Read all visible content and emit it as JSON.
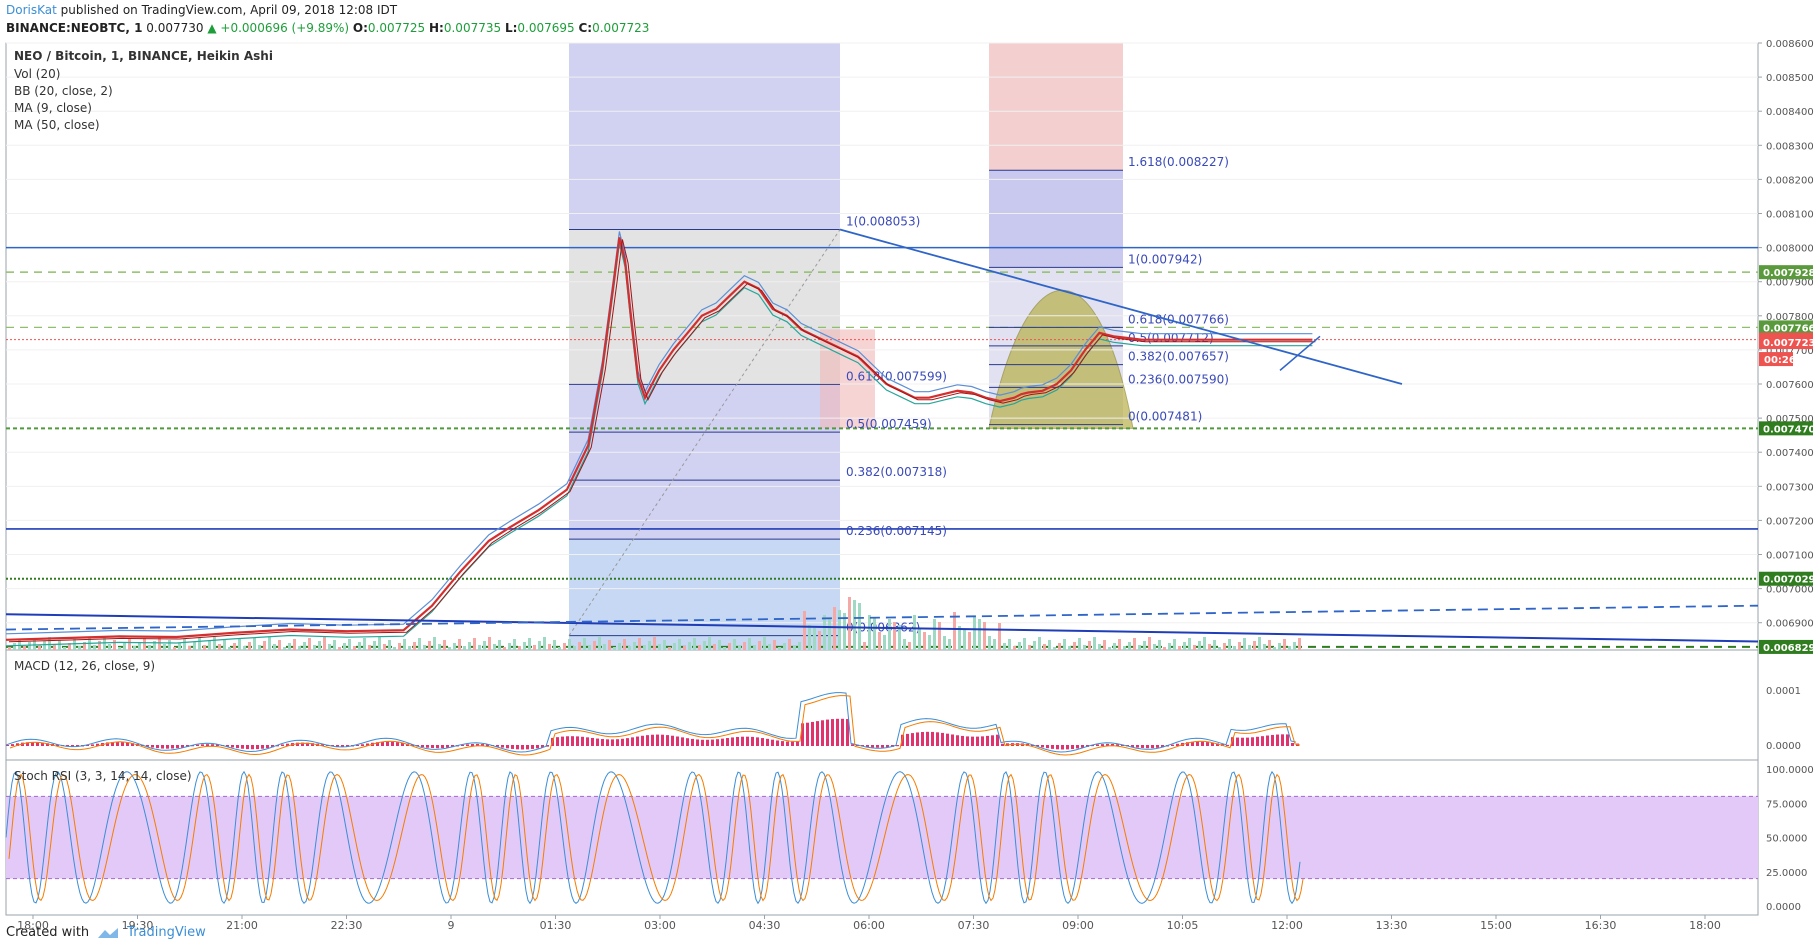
{
  "header": {
    "author": "DorisKat",
    "published": "published on TradingView.com, April 09, 2018 12:08 IDT",
    "symbol": "BINANCE:NEOBTC, 1",
    "last": "0.007730",
    "change": "▲ +0.000696 (+9.89%)",
    "o_label": "O:",
    "o": "0.007725",
    "h_label": "H:",
    "h": "0.007735",
    "l_label": "L:",
    "l": "0.007695",
    "c_label": "C:",
    "c": "0.007723"
  },
  "footer": {
    "created_with": "Created with",
    "brand": "TradingView"
  },
  "colors": {
    "accent": "#3b8ed6",
    "up": "#26a69a",
    "down": "#ef5350",
    "ma": "#d32f2f",
    "band": "#5c8fd6",
    "purple_zone": "#e2c9f7"
  },
  "chart_data": {
    "type": "line",
    "title": "NEO / Bitcoin, 1, BINANCE, Heikin Ashi",
    "indicators": [
      "Vol (20)",
      "BB (20, close, 2)",
      "MA (9, close)",
      "MA (50, close)"
    ],
    "x_ticks": [
      "18:00",
      "19:30",
      "21:00",
      "22:30",
      "9",
      "01:30",
      "03:00",
      "04:30",
      "06:00",
      "07:30",
      "09:00",
      "10:05",
      "12:00",
      "13:30",
      "15:00",
      "16:30",
      "18:00"
    ],
    "ylim": [
      0.00682,
      0.0086
    ],
    "y_ticks": [
      "0.008600",
      "0.008500",
      "0.008400",
      "0.008300",
      "0.008200",
      "0.008100",
      "0.008000",
      "0.007900",
      "0.007800",
      "0.007700",
      "0.007600",
      "0.007500",
      "0.007400",
      "0.007300",
      "0.007200",
      "0.007100",
      "0.007000",
      "0.006900"
    ],
    "price_badges": [
      {
        "value": 0.007928,
        "label": "0.007928",
        "color": "#5a9a3c"
      },
      {
        "value": 0.007766,
        "label": "0.007766",
        "color": "#5a9a3c"
      },
      {
        "value": 0.00773,
        "label": "0.007730",
        "color": "#ef5350"
      },
      {
        "value": 0.007723,
        "label": "0.007723",
        "color": "#ef5350"
      },
      {
        "value": 0.00747,
        "label": "0.007470",
        "color": "#2f7d1e"
      },
      {
        "value": 0.007029,
        "label": "0.007029",
        "color": "#2f7d1e"
      },
      {
        "value": 0.006829,
        "label": "0.006829",
        "color": "#2f7d1e"
      }
    ],
    "countdown": "00:26",
    "fib_left": [
      {
        "ratio": "1(0.008053)",
        "value": 0.008053
      },
      {
        "ratio": "0.618(0.007599)",
        "value": 0.007599
      },
      {
        "ratio": "0.5(0.007459)",
        "value": 0.007459
      },
      {
        "ratio": "0.382(0.007318)",
        "value": 0.007318
      },
      {
        "ratio": "0.236(0.007145)",
        "value": 0.007145
      },
      {
        "ratio": "0(0.006862)",
        "value": 0.006862
      }
    ],
    "fib_right": [
      {
        "ratio": "1.618(0.008227)",
        "value": 0.008227
      },
      {
        "ratio": "1(0.007942)",
        "value": 0.007942
      },
      {
        "ratio": "0.618(0.007766)",
        "value": 0.007766
      },
      {
        "ratio": "0.5(0.007712)",
        "value": 0.007712
      },
      {
        "ratio": "0.382(0.007657)",
        "value": 0.007657
      },
      {
        "ratio": "0.236(0.007590)",
        "value": 0.00759
      },
      {
        "ratio": "0(0.007481)",
        "value": 0.007481
      }
    ],
    "horizontal_lines": [
      0.008,
      0.007928,
      0.007766,
      0.00773,
      0.00747,
      0.007175,
      0.007029,
      0.006829
    ],
    "price_series_x": [
      0,
      40,
      80,
      120,
      160,
      200,
      240,
      280,
      300,
      320,
      340,
      355,
      375,
      395,
      410,
      420,
      428,
      432,
      436,
      440,
      445,
      450,
      460,
      470,
      480,
      490,
      500,
      510,
      520,
      530,
      540,
      550,
      560,
      570,
      580,
      590,
      600,
      610,
      620,
      630,
      640,
      650,
      660,
      670,
      680,
      690,
      700,
      710,
      715,
      720,
      730,
      740,
      750,
      760,
      770,
      780,
      790,
      800,
      810,
      820,
      830,
      840,
      850,
      860,
      870,
      880,
      890,
      900,
      910,
      920
    ],
    "price_series_y": [
      0.00685,
      0.006855,
      0.00686,
      0.006858,
      0.00687,
      0.00688,
      0.006875,
      0.006878,
      0.00695,
      0.00705,
      0.00714,
      0.00718,
      0.00723,
      0.00729,
      0.00742,
      0.00765,
      0.0079,
      0.00803,
      0.00796,
      0.0078,
      0.00762,
      0.00756,
      0.00764,
      0.0077,
      0.00775,
      0.0078,
      0.00782,
      0.00786,
      0.0079,
      0.00788,
      0.00782,
      0.0078,
      0.00776,
      0.00774,
      0.00772,
      0.0077,
      0.00768,
      0.00764,
      0.0076,
      0.00758,
      0.00756,
      0.00756,
      0.00757,
      0.00758,
      0.007575,
      0.00756,
      0.00755,
      0.00756,
      0.00757,
      0.007575,
      0.00758,
      0.0076,
      0.00764,
      0.0077,
      0.00775,
      0.00774,
      0.007735,
      0.00773,
      0.00773,
      0.00773,
      0.00773,
      0.00773,
      0.00773,
      0.00773,
      0.00773,
      0.00773,
      0.00773,
      0.00773,
      0.00773,
      0.00773
    ],
    "macd_label": "MACD (12, 26, close, 9)",
    "macd_ticks": [
      "0.0001",
      "0.0000"
    ],
    "stoch_label": "Stoch RSI (3, 3, 14, 14, close)",
    "stoch_ticks": [
      "100.0000",
      "75.0000",
      "50.0000",
      "25.0000",
      "0.0000"
    ]
  }
}
